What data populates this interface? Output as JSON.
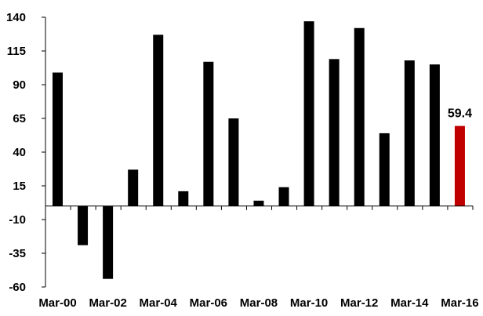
{
  "chart_data": {
    "type": "bar",
    "title": "",
    "xlabel": "",
    "ylabel": "",
    "ylim": [
      -60,
      140
    ],
    "yticks": [
      140,
      115,
      90,
      65,
      40,
      15,
      -10,
      -35,
      -60
    ],
    "categories": [
      "Mar-00",
      "Mar-01",
      "Mar-02",
      "Mar-03",
      "Mar-04",
      "Mar-05",
      "Mar-06",
      "Mar-07",
      "Mar-08",
      "Mar-09",
      "Mar-10",
      "Mar-11",
      "Mar-12",
      "Mar-13",
      "Mar-14",
      "Mar-15",
      "Mar-16"
    ],
    "x_tick_labels": [
      "Mar-00",
      "Mar-02",
      "Mar-04",
      "Mar-06",
      "Mar-08",
      "Mar-10",
      "Mar-12",
      "Mar-14",
      "Mar-16"
    ],
    "values": [
      99,
      -29,
      -54,
      27,
      127,
      11,
      107,
      65,
      4,
      14,
      137,
      109,
      132,
      54,
      108,
      105,
      59.4
    ],
    "data_labels": [
      {
        "index": 16,
        "text": "59.4"
      }
    ],
    "colors": {
      "bar": "#000000",
      "highlight": "#c00000",
      "axis": "#000000"
    },
    "highlight_index": 16,
    "grid": false,
    "legend": "none"
  }
}
